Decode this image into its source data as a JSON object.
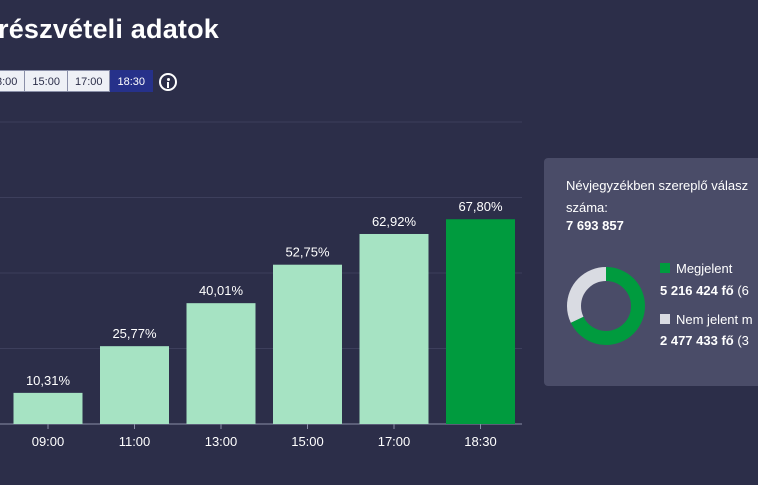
{
  "page_title": "részvételi adatok",
  "time_tabs": [
    {
      "label": "3:00",
      "active": false
    },
    {
      "label": "15:00",
      "active": false
    },
    {
      "label": "17:00",
      "active": false
    },
    {
      "label": "18:30",
      "active": true
    }
  ],
  "chart_data": {
    "type": "bar",
    "categories": [
      "09:00",
      "11:00",
      "13:00",
      "15:00",
      "17:00",
      "18:30"
    ],
    "values": [
      10.31,
      25.77,
      40.01,
      52.75,
      62.92,
      67.8
    ],
    "data_labels": [
      "10,31%",
      "25,77%",
      "40,01%",
      "52,75%",
      "62,92%",
      "67,80%"
    ],
    "ylim": [
      0,
      100
    ],
    "grid": true,
    "colors": {
      "default": "#a6e3c3",
      "highlight": "#009b3e"
    },
    "highlight_index": 5
  },
  "summary": {
    "title_line1": "Névjegyzékben szereplő válasz",
    "title_line2": "száma:",
    "total": "7 693 857",
    "donut": {
      "colors": [
        "#009b3e",
        "#d9dbe2"
      ],
      "fractions": [
        0.678,
        0.322
      ]
    },
    "legend": [
      {
        "label": "Megjelent",
        "value": "5 216 424 fő",
        "pct": "(6",
        "color": "#009b3e"
      },
      {
        "label": "Nem jelent m",
        "value": "2 477 433 fő",
        "pct": "(3",
        "color": "#d9dbe2"
      }
    ]
  }
}
